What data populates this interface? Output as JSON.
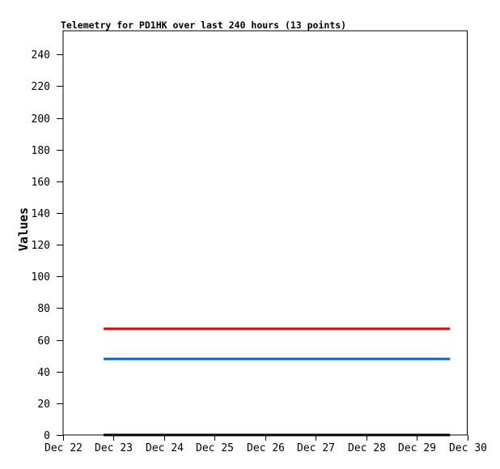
{
  "page": {
    "background_color": "#ffffff"
  },
  "chart_data": {
    "type": "line",
    "title": "Telemetry for PD1HK over last 240 hours (13 points)",
    "ylabel": "Values",
    "xlabel": "",
    "point_count": 13,
    "grid": false,
    "legend": "none",
    "axis_color": "#000000",
    "text_color": "#000000",
    "ylim": [
      0,
      255
    ],
    "yticks": [
      0,
      20,
      40,
      60,
      80,
      100,
      120,
      140,
      160,
      180,
      200,
      220,
      240
    ],
    "xticks": [
      "Dec 22",
      "Dec 23",
      "Dec 24",
      "Dec 25",
      "Dec 26",
      "Dec 27",
      "Dec 28",
      "Dec 29",
      "Dec 30"
    ],
    "series": [
      {
        "name": "red-line",
        "color": "#ee0000",
        "value": 67,
        "x_start_day": 0.8,
        "x_end_day": 7.66,
        "line_width": 3
      },
      {
        "name": "blue-line",
        "color": "#0a64c8",
        "value": 48,
        "x_start_day": 0.8,
        "x_end_day": 7.66,
        "line_width": 3
      },
      {
        "name": "black-line",
        "color": "#000000",
        "value": 0,
        "x_start_day": 0.8,
        "x_end_day": 7.66,
        "line_width": 3
      }
    ]
  }
}
